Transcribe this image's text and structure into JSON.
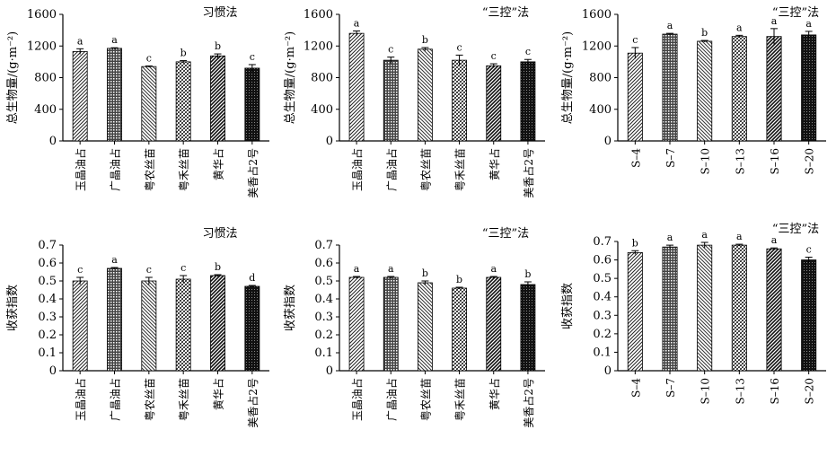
{
  "chart_data": [
    {
      "type": "bar",
      "title": "习惯法",
      "ylabel": "总生物量/(g·m⁻²)",
      "ylim": [
        0,
        1600
      ],
      "yticks": [
        "0",
        "400",
        "800",
        "1200",
        "1600"
      ],
      "categories": [
        "玉晶油占",
        "广晶油占",
        "粤农丝苗",
        "粤禾丝苗",
        "黄华占",
        "美香占2号"
      ],
      "values": [
        1130,
        1170,
        940,
        1000,
        1075,
        920
      ],
      "errors": [
        35,
        8,
        8,
        15,
        25,
        45
      ],
      "letters": [
        "a",
        "a",
        "c",
        "b",
        "b",
        "c"
      ],
      "pattern": [
        "diag",
        "dots",
        "hatch",
        "checker",
        "vert",
        "dense"
      ],
      "grid": false
    },
    {
      "type": "bar",
      "title": "“三控”法",
      "ylabel": "总生物量/(g·m⁻²)",
      "ylim": [
        0,
        1600
      ],
      "yticks": [
        "0",
        "400",
        "800",
        "1200",
        "1600"
      ],
      "categories": [
        "玉晶油占",
        "广晶油占",
        "粤农丝苗",
        "粤禾丝苗",
        "黄华占",
        "美香占2号"
      ],
      "values": [
        1360,
        1020,
        1160,
        1020,
        950,
        1000
      ],
      "errors": [
        30,
        40,
        20,
        65,
        25,
        30
      ],
      "letters": [
        "a",
        "c",
        "b",
        "c",
        "c",
        "c"
      ],
      "pattern": [
        "diag",
        "dots",
        "hatch",
        "checker",
        "vert",
        "dense"
      ],
      "grid": false
    },
    {
      "type": "bar",
      "title": "“三控”法",
      "ylabel": "总生物量/(g·m⁻²)",
      "ylim": [
        0,
        1600
      ],
      "yticks": [
        "0",
        "400",
        "800",
        "1200",
        "1600"
      ],
      "categories": [
        "S–4",
        "S–7",
        "S–10",
        "S–13",
        "S–16",
        "S–20"
      ],
      "values": [
        1110,
        1350,
        1260,
        1320,
        1320,
        1340
      ],
      "errors": [
        70,
        10,
        10,
        15,
        100,
        45
      ],
      "letters": [
        "c",
        "a",
        "b",
        "a",
        "a",
        "a"
      ],
      "pattern": [
        "diag",
        "dots",
        "hatch",
        "checker",
        "vert",
        "dense"
      ],
      "grid": false
    },
    {
      "type": "bar",
      "title": "习惯法",
      "ylabel": "收获指数",
      "ylim": [
        0,
        0.7
      ],
      "yticks": [
        "0",
        "0.1",
        "0.2",
        "0.3",
        "0.4",
        "0.5",
        "0.6",
        "0.7"
      ],
      "categories": [
        "玉晶油占",
        "广晶油占",
        "粤农丝苗",
        "粤禾丝苗",
        "黄华占",
        "美香占2号"
      ],
      "values": [
        0.5,
        0.57,
        0.5,
        0.51,
        0.53,
        0.47
      ],
      "errors": [
        0.02,
        0.005,
        0.02,
        0.02,
        0.005,
        0.005
      ],
      "letters": [
        "c",
        "a",
        "c",
        "c",
        "b",
        "d"
      ],
      "pattern": [
        "diag",
        "dots",
        "hatch",
        "checker",
        "vert",
        "dense"
      ],
      "grid": false
    },
    {
      "type": "bar",
      "title": "“三控”法",
      "ylabel": "收获指数",
      "ylim": [
        0,
        0.7
      ],
      "yticks": [
        "0",
        "0.1",
        "0.2",
        "0.3",
        "0.4",
        "0.5",
        "0.6",
        "0.7"
      ],
      "categories": [
        "玉晶油占",
        "广晶油占",
        "粤农丝苗",
        "粤禾丝苗",
        "黄华占",
        "美香占2号"
      ],
      "values": [
        0.52,
        0.52,
        0.49,
        0.46,
        0.52,
        0.48
      ],
      "errors": [
        0.005,
        0.005,
        0.01,
        0.005,
        0.005,
        0.015
      ],
      "letters": [
        "a",
        "a",
        "b",
        "b",
        "a",
        "b"
      ],
      "pattern": [
        "diag",
        "dots",
        "hatch",
        "checker",
        "vert",
        "dense"
      ],
      "grid": false
    },
    {
      "type": "bar",
      "title": "“三控”法",
      "ylabel": "收获指数",
      "ylim": [
        0,
        0.7
      ],
      "yticks": [
        "0",
        "0.1",
        "0.2",
        "0.3",
        "0.4",
        "0.5",
        "0.6",
        "0.7"
      ],
      "categories": [
        "S–4",
        "S–7",
        "S–10",
        "S–13",
        "S–16",
        "S–20"
      ],
      "values": [
        0.64,
        0.67,
        0.68,
        0.68,
        0.66,
        0.6
      ],
      "errors": [
        0.01,
        0.01,
        0.015,
        0.005,
        0.005,
        0.015
      ],
      "letters": [
        "b",
        "a",
        "a",
        "a",
        "a",
        "c"
      ],
      "pattern": [
        "diag",
        "dots",
        "hatch",
        "checker",
        "vert",
        "dense"
      ],
      "grid": false
    }
  ]
}
